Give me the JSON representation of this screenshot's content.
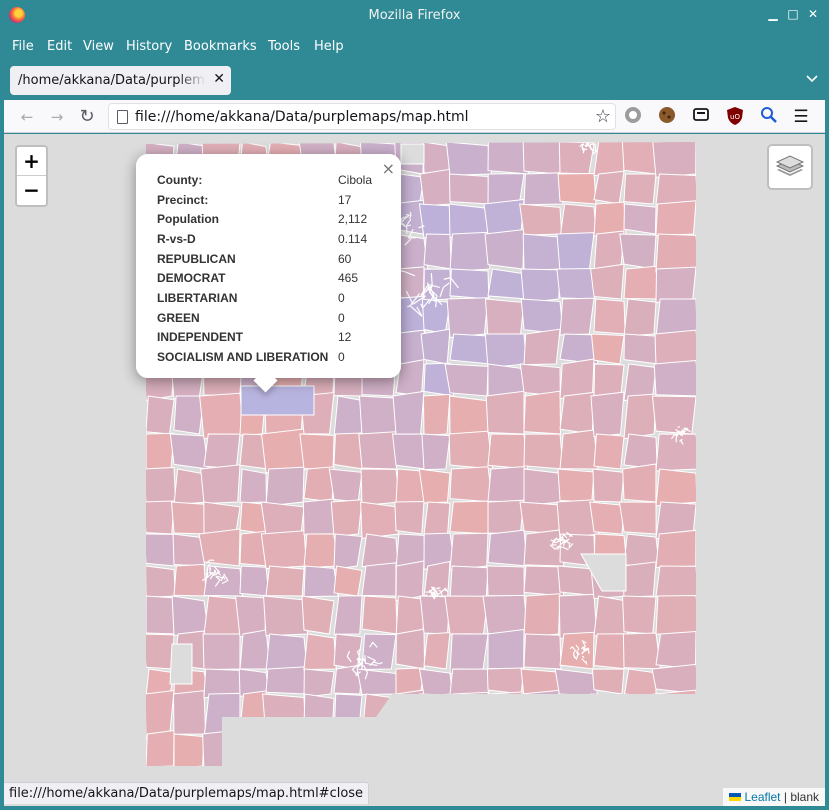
{
  "window": {
    "title": "Mozilla Firefox",
    "minimize_glyph": "▁",
    "maximize_glyph": "□",
    "close_glyph": "✕"
  },
  "menubar": {
    "items": [
      "File",
      "Edit",
      "View",
      "History",
      "Bookmarks",
      "Tools",
      "Help"
    ]
  },
  "tab": {
    "label": "/home/akkana/Data/purplemaps/map.html",
    "close_glyph": "✕"
  },
  "navbar": {
    "url": "file:///home/akkana/Data/purplemaps/map.html",
    "back_glyph": "←",
    "forward_glyph": "→",
    "reload_glyph": "↻",
    "menu_glyph": "☰",
    "bookmark_glyph": "☆",
    "extension_icons": [
      "ghost-extension-icon",
      "cookie-extension-icon",
      "reader-extension-icon",
      "ublock-origin-icon",
      "search-extension-icon"
    ]
  },
  "map": {
    "zoom_in_label": "+",
    "zoom_out_label": "−",
    "selected_precinct_color": "#b8b4e0",
    "republican_color": "#e8aeae",
    "democrat_color": "#b6b2e0",
    "boundary_color": "#ffffff",
    "background_color": "#dcdcdc"
  },
  "popup": {
    "close_glyph": "×",
    "rows": [
      {
        "key": "County:",
        "value": "Cibola"
      },
      {
        "key": "Precinct:",
        "value": "17"
      },
      {
        "key": "Population",
        "value": "2,112"
      },
      {
        "key": "R-vs-D",
        "value": "0.114"
      },
      {
        "key": "REPUBLICAN",
        "value": "60"
      },
      {
        "key": "DEMOCRAT",
        "value": "465"
      },
      {
        "key": "LIBERTARIAN",
        "value": "0"
      },
      {
        "key": "GREEN",
        "value": "0"
      },
      {
        "key": "INDEPENDENT",
        "value": "12"
      },
      {
        "key": "SOCIALISM AND LIBERATION",
        "value": "0"
      }
    ]
  },
  "status": {
    "text": "file:///home/akkana/Data/purplemaps/map.html#close"
  },
  "attribution": {
    "link": "Leaflet",
    "separator": " | ",
    "rest": "blank"
  }
}
